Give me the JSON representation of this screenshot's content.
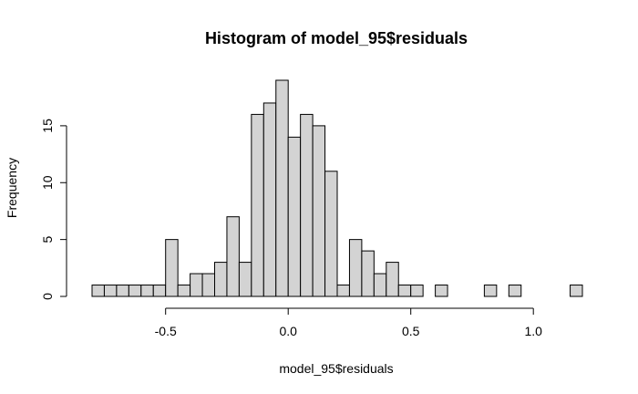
{
  "chart_data": {
    "type": "bar",
    "title": "Histogram of model_95$residuals",
    "xlabel": "model_95$residuals",
    "ylabel": "Frequency",
    "bin_width": 0.05,
    "bins": [
      {
        "start": -0.8,
        "count": 1
      },
      {
        "start": -0.75,
        "count": 1
      },
      {
        "start": -0.7,
        "count": 1
      },
      {
        "start": -0.65,
        "count": 1
      },
      {
        "start": -0.6,
        "count": 1
      },
      {
        "start": -0.55,
        "count": 1
      },
      {
        "start": -0.5,
        "count": 5
      },
      {
        "start": -0.45,
        "count": 1
      },
      {
        "start": -0.4,
        "count": 2
      },
      {
        "start": -0.35,
        "count": 2
      },
      {
        "start": -0.3,
        "count": 3
      },
      {
        "start": -0.25,
        "count": 7
      },
      {
        "start": -0.2,
        "count": 3
      },
      {
        "start": -0.15,
        "count": 16
      },
      {
        "start": -0.1,
        "count": 17
      },
      {
        "start": -0.05,
        "count": 19
      },
      {
        "start": 0.0,
        "count": 14
      },
      {
        "start": 0.05,
        "count": 16
      },
      {
        "start": 0.1,
        "count": 15
      },
      {
        "start": 0.15,
        "count": 11
      },
      {
        "start": 0.2,
        "count": 1
      },
      {
        "start": 0.25,
        "count": 5
      },
      {
        "start": 0.3,
        "count": 4
      },
      {
        "start": 0.35,
        "count": 2
      },
      {
        "start": 0.4,
        "count": 3
      },
      {
        "start": 0.45,
        "count": 1
      },
      {
        "start": 0.5,
        "count": 1
      },
      {
        "start": 0.55,
        "count": 0
      },
      {
        "start": 0.6,
        "count": 1
      },
      {
        "start": 0.65,
        "count": 0
      },
      {
        "start": 0.7,
        "count": 0
      },
      {
        "start": 0.75,
        "count": 0
      },
      {
        "start": 0.8,
        "count": 1
      },
      {
        "start": 0.85,
        "count": 0
      },
      {
        "start": 0.9,
        "count": 1
      },
      {
        "start": 0.95,
        "count": 0
      },
      {
        "start": 1.0,
        "count": 0
      },
      {
        "start": 1.05,
        "count": 0
      },
      {
        "start": 1.1,
        "count": 0
      },
      {
        "start": 1.15,
        "count": 1
      }
    ],
    "xlim": [
      -0.8,
      1.2
    ],
    "ylim": [
      0,
      19
    ],
    "x_ticks": [
      {
        "value": -0.5,
        "label": "-0.5"
      },
      {
        "value": 0.0,
        "label": "0.0"
      },
      {
        "value": 0.5,
        "label": "0.5"
      },
      {
        "value": 1.0,
        "label": "1.0"
      }
    ],
    "y_ticks": [
      {
        "value": 0,
        "label": "0"
      },
      {
        "value": 5,
        "label": "5"
      },
      {
        "value": 10,
        "label": "10"
      },
      {
        "value": 15,
        "label": "15"
      }
    ],
    "grid": false,
    "legend": "none",
    "colors": {
      "bar_fill": "#d3d3d3",
      "bar_stroke": "#000000",
      "axis": "#000000",
      "background": "#ffffff"
    }
  }
}
